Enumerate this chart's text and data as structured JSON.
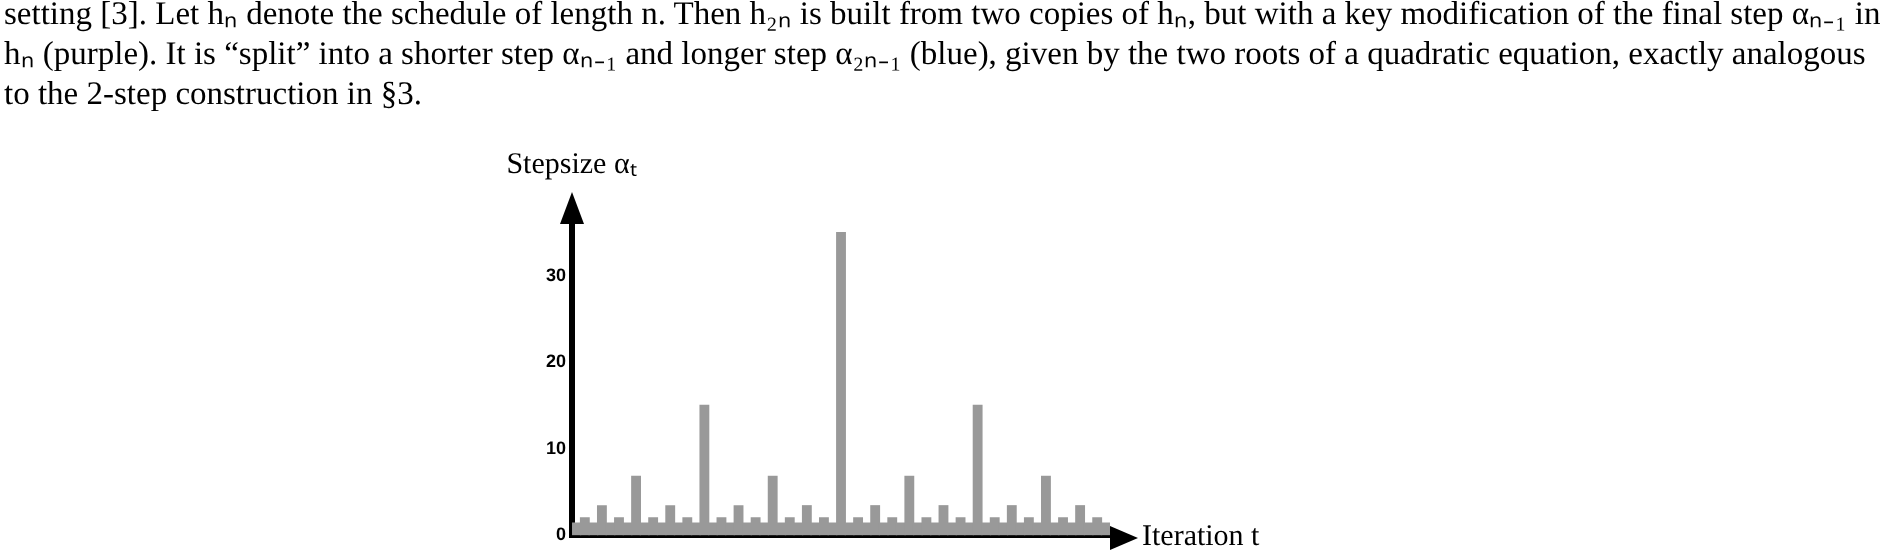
{
  "chart_data": {
    "type": "bar",
    "annotations": [
      "setting [3]. Let hₙ denote the schedule of length n. Then h₂ₙ is built from two copies of hₙ, but with a key modification of the final step αₙ₋₁ in hₙ (purple). It is “split” into a shorter step αₙ₋₁ and longer step α₂ₙ₋₁ (blue), given by the two roots of a quadratic equation, exactly analogous to the 2-step construction in §3."
    ],
    "xlabel": "Iteration t",
    "ylabel": "Stepsize αₜ",
    "categories": [
      null,
      null,
      null,
      null,
      null,
      null,
      null,
      null,
      null,
      null,
      null,
      null,
      null,
      null,
      null,
      null,
      null,
      null,
      null,
      null,
      null,
      null,
      null,
      null,
      null,
      null,
      null,
      null,
      null,
      null,
      null,
      null,
      null,
      null,
      null,
      null,
      null,
      null,
      null,
      null,
      null,
      null,
      null,
      null,
      null,
      null,
      null,
      null,
      null,
      null,
      null,
      null,
      null,
      null,
      null,
      null,
      null,
      null,
      null,
      null,
      null,
      null,
      null
    ],
    "values": [
      1.4,
      2,
      1.4,
      3.4,
      1.4,
      2,
      1.4,
      6.8,
      1.4,
      2,
      1.4,
      3.4,
      1.4,
      2,
      1.4,
      15,
      1.4,
      2,
      1.4,
      3.4,
      1.4,
      2,
      1.4,
      6.8,
      1.4,
      2,
      1.4,
      3.4,
      1.4,
      2,
      1.4,
      35,
      1.4,
      2,
      1.4,
      3.4,
      1.4,
      2,
      1.4,
      6.8,
      1.4,
      2,
      1.4,
      3.4,
      1.4,
      2,
      1.4,
      15,
      1.4,
      2,
      1.4,
      3.4,
      1.4,
      2,
      1.4,
      6.8,
      1.4,
      2,
      1.4,
      3.4,
      1.4,
      2,
      1.4
    ],
    "color": "#999999",
    "ylim": [
      0,
      36
    ],
    "yticks": [
      0,
      10,
      20,
      30
    ],
    "tick_labels": "y",
    "grid": false,
    "legend": false
  }
}
